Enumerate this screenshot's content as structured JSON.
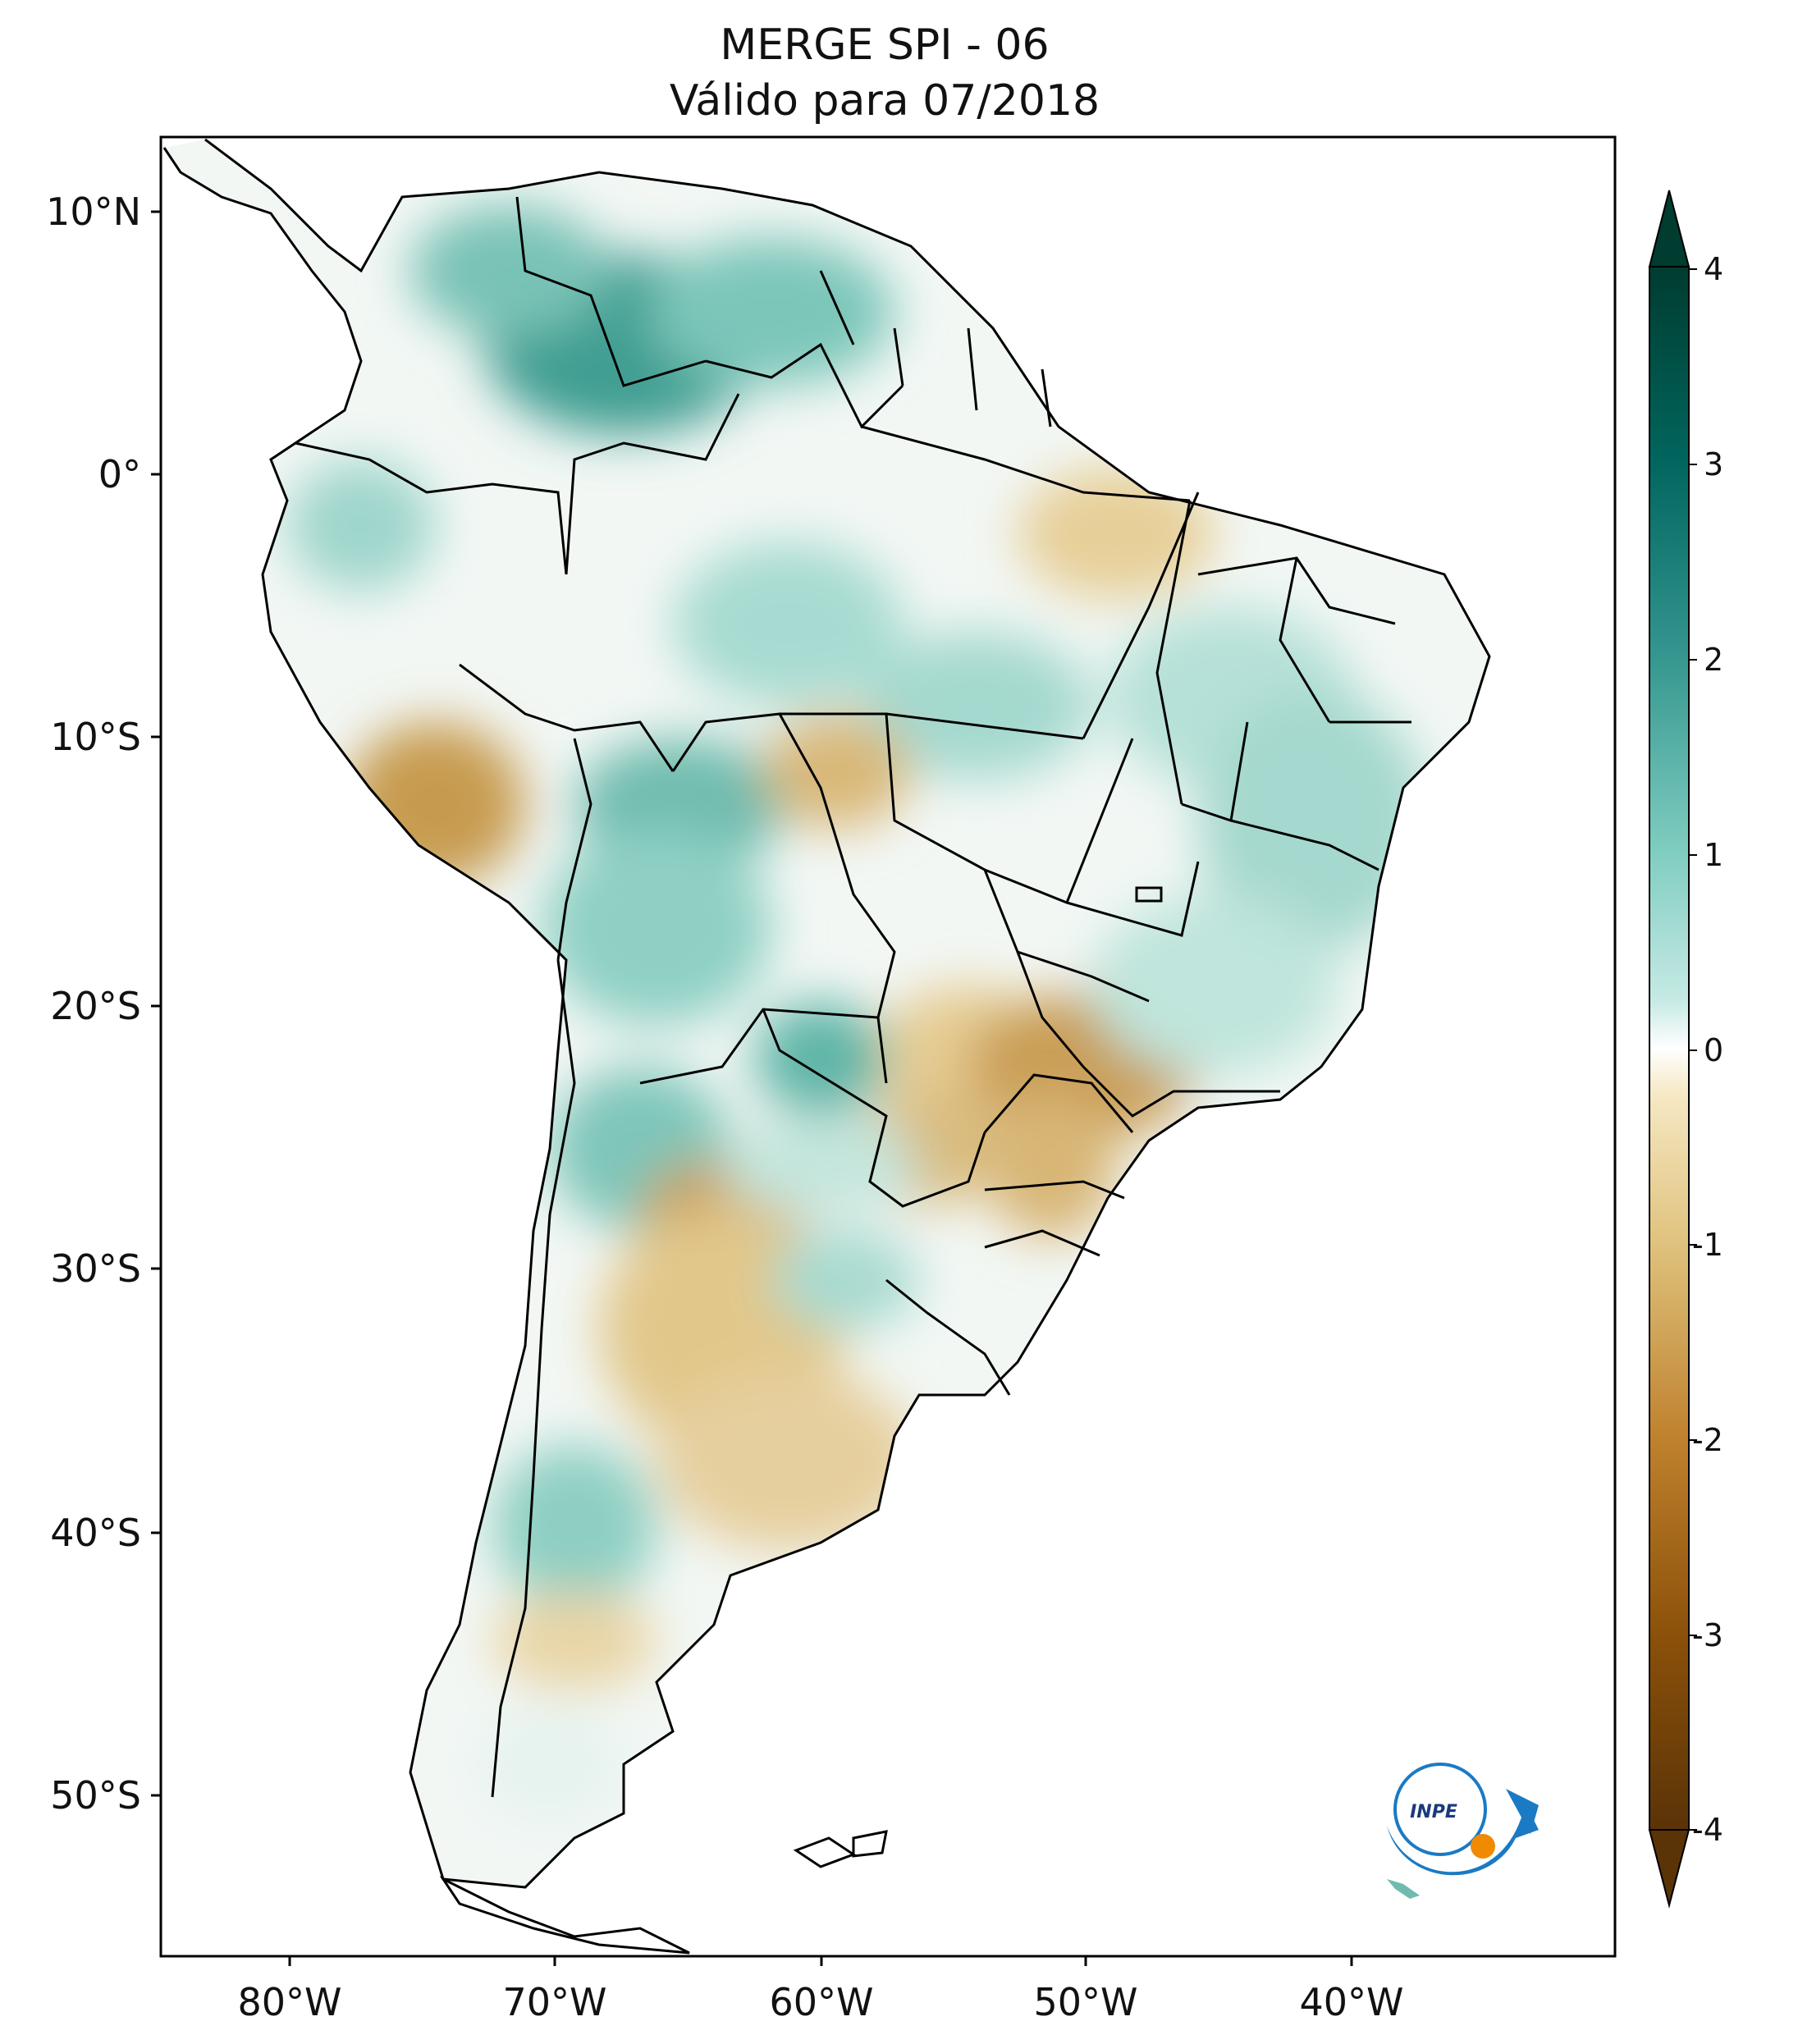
{
  "figure": {
    "title_line1": "MERGE   SPI - 06",
    "title_line2": "Válido para 07/2018"
  },
  "map": {
    "lat_ticks": [
      "10°N",
      "0°",
      "10°S",
      "20°S",
      "30°S",
      "40°S",
      "50°S"
    ],
    "lon_ticks": [
      "80°W",
      "70°W",
      "60°W",
      "50°W",
      "40°W"
    ],
    "extent": {
      "lon": [
        -85,
        -30
      ],
      "lat": [
        -57,
        13
      ]
    }
  },
  "colorbar": {
    "ticks": [
      "4",
      "3",
      "2",
      "1",
      "0",
      "-1",
      "-2",
      "-3",
      "-4"
    ],
    "colormap": "BrBG",
    "range": [
      -4,
      4
    ],
    "colors": {
      "wet_dark": "#00463b",
      "wet_mid": "#4aa79a",
      "neutral": "#ffffff",
      "dry_mid": "#d6b16a",
      "dry_dark": "#5a3307"
    }
  },
  "logo": {
    "text": "INPE"
  }
}
